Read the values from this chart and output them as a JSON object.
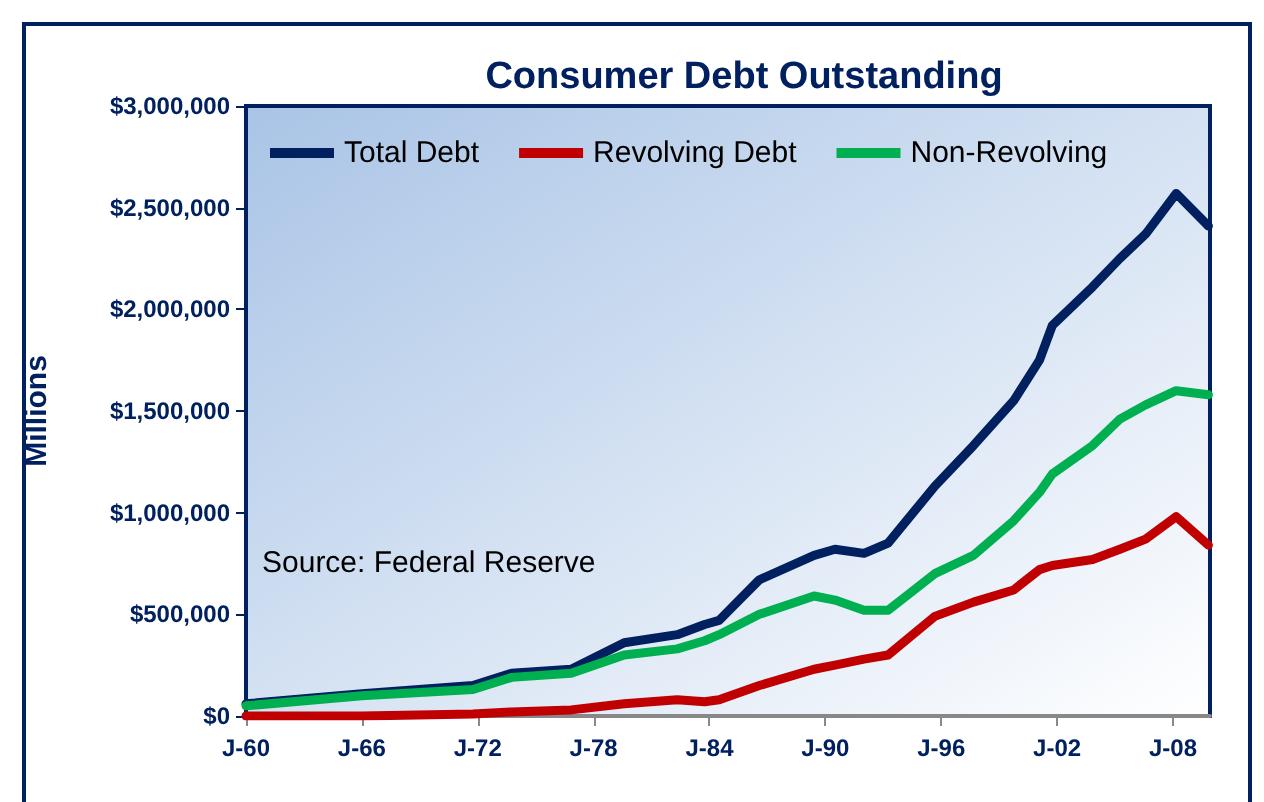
{
  "chart_data": {
    "type": "line",
    "title": "Consumer Debt Outstanding",
    "ylabel": "Millions",
    "annotations": [
      "Source: Federal Reserve"
    ],
    "x": [
      "1960-01",
      "1966-01",
      "1971-10",
      "1973-10",
      "1976-11",
      "1979-08",
      "1982-05",
      "1983-10",
      "1984-07",
      "1986-08",
      "1989-06",
      "1990-07",
      "1992-01",
      "1993-04",
      "1995-09",
      "1997-09",
      "1999-10",
      "2001-02",
      "2001-10",
      "2003-11",
      "2005-04",
      "2006-08",
      "2008-03",
      "2009-11"
    ],
    "series": [
      {
        "name": "Total Debt",
        "color": "#002060",
        "values": [
          60000,
          110000,
          150000,
          210000,
          230000,
          360000,
          400000,
          450000,
          470000,
          670000,
          790000,
          820000,
          800000,
          850000,
          1130000,
          1330000,
          1550000,
          1750000,
          1920000,
          2110000,
          2250000,
          2370000,
          2570000,
          2410000
        ]
      },
      {
        "name": "Revolving Debt",
        "color": "#c00000",
        "values": [
          0,
          0,
          10000,
          20000,
          30000,
          60000,
          80000,
          70000,
          80000,
          150000,
          230000,
          250000,
          280000,
          300000,
          490000,
          560000,
          620000,
          720000,
          740000,
          770000,
          820000,
          870000,
          980000,
          840000
        ]
      },
      {
        "name": "Non-Revolving",
        "color": "#00b050",
        "values": [
          50000,
          100000,
          130000,
          190000,
          210000,
          300000,
          330000,
          370000,
          400000,
          500000,
          590000,
          570000,
          520000,
          520000,
          700000,
          790000,
          960000,
          1100000,
          1190000,
          1330000,
          1460000,
          1530000,
          1600000,
          1580000
        ]
      }
    ],
    "xlim": [
      "1960-01",
      "2009-12"
    ],
    "xticks": [
      {
        "value": "1960-01",
        "label": "J-60"
      },
      {
        "value": "1966-01",
        "label": "J-66"
      },
      {
        "value": "1972-01",
        "label": "J-72"
      },
      {
        "value": "1978-01",
        "label": "J-78"
      },
      {
        "value": "1984-01",
        "label": "J-84"
      },
      {
        "value": "1990-01",
        "label": "J-90"
      },
      {
        "value": "1996-01",
        "label": "J-96"
      },
      {
        "value": "2002-01",
        "label": "J-02"
      },
      {
        "value": "2008-01",
        "label": "J-08"
      }
    ],
    "ylim": [
      0,
      3000000
    ],
    "yticks": [
      {
        "value": 0,
        "label": "$0"
      },
      {
        "value": 500000,
        "label": "$500,000"
      },
      {
        "value": 1000000,
        "label": "$1,000,000"
      },
      {
        "value": 1500000,
        "label": "$1,500,000"
      },
      {
        "value": 2000000,
        "label": "$2,000,000"
      },
      {
        "value": 2500000,
        "label": "$2,500,000"
      },
      {
        "value": 3000000,
        "label": "$3,000,000"
      }
    ],
    "grid": false,
    "legend": "top left",
    "marker": "none",
    "line_style": "solid"
  }
}
